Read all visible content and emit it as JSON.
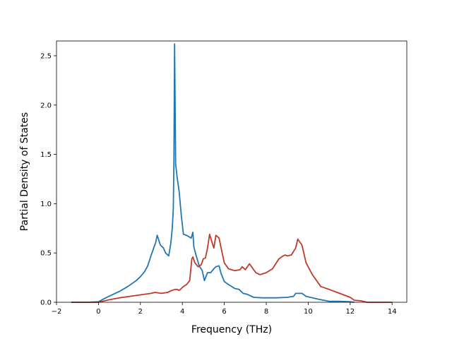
{
  "chart_data": {
    "type": "line",
    "title": "",
    "xlabel": "Frequency (THz)",
    "ylabel": "Partial Density of States",
    "xlim": [
      -2,
      14.7
    ],
    "ylim": [
      0,
      2.65
    ],
    "xticks": [
      -2,
      0,
      2,
      4,
      6,
      8,
      10,
      12,
      14
    ],
    "yticks": [
      0.0,
      0.5,
      1.0,
      1.5,
      2.0,
      2.5
    ],
    "xtick_labels": [
      "−2",
      "0",
      "2",
      "4",
      "6",
      "8",
      "10",
      "12",
      "14"
    ],
    "ytick_labels": [
      "0.0",
      "0.5",
      "1.0",
      "1.5",
      "2.0",
      "2.5"
    ],
    "grid": false,
    "legend": "none",
    "series": [
      {
        "color": "#1f77b4",
        "x": [
          -1.3,
          -0.5,
          0.0,
          0.3,
          0.6,
          1.0,
          1.4,
          1.8,
          2.0,
          2.2,
          2.35,
          2.5,
          2.65,
          2.72,
          2.8,
          2.95,
          3.1,
          3.2,
          3.35,
          3.45,
          3.52,
          3.57,
          3.6,
          3.63,
          3.68,
          3.75,
          3.85,
          3.95,
          4.05,
          4.2,
          4.35,
          4.42,
          4.5,
          4.55,
          4.65,
          4.8,
          4.95,
          5.05,
          5.2,
          5.35,
          5.5,
          5.6,
          5.75,
          5.85,
          6.0,
          6.2,
          6.5,
          6.7,
          6.9,
          7.1,
          7.2,
          7.4,
          7.8,
          8.5,
          9.0,
          9.3,
          9.4,
          9.55,
          9.7,
          9.9,
          10.5,
          11.0,
          11.5,
          12.0,
          12.2
        ],
        "y": [
          0.0,
          0.0,
          0.005,
          0.04,
          0.07,
          0.11,
          0.16,
          0.22,
          0.26,
          0.31,
          0.37,
          0.47,
          0.56,
          0.6,
          0.68,
          0.58,
          0.55,
          0.5,
          0.47,
          0.6,
          0.75,
          0.95,
          1.45,
          2.62,
          1.4,
          1.27,
          1.12,
          0.88,
          0.69,
          0.68,
          0.66,
          0.65,
          0.71,
          0.56,
          0.48,
          0.37,
          0.32,
          0.22,
          0.3,
          0.3,
          0.34,
          0.36,
          0.37,
          0.29,
          0.21,
          0.18,
          0.14,
          0.13,
          0.09,
          0.08,
          0.07,
          0.05,
          0.045,
          0.045,
          0.05,
          0.06,
          0.09,
          0.09,
          0.09,
          0.06,
          0.03,
          0.01,
          0.01,
          0.005,
          0.0
        ]
      },
      {
        "color": "#c0392b",
        "x": [
          -1.3,
          0.0,
          0.5,
          1.0,
          1.5,
          2.0,
          2.5,
          2.7,
          3.0,
          3.3,
          3.5,
          3.65,
          3.75,
          3.85,
          3.95,
          4.05,
          4.2,
          4.35,
          4.45,
          4.5,
          4.6,
          4.75,
          4.9,
          5.0,
          5.1,
          5.2,
          5.3,
          5.38,
          5.5,
          5.6,
          5.75,
          5.85,
          6.0,
          6.2,
          6.5,
          6.75,
          6.85,
          7.0,
          7.2,
          7.3,
          7.5,
          7.7,
          8.0,
          8.3,
          8.6,
          8.8,
          8.9,
          9.0,
          9.2,
          9.4,
          9.5,
          9.7,
          9.9,
          10.2,
          10.6,
          11.0,
          11.5,
          12.0,
          12.2,
          12.5,
          12.8,
          13.5,
          14.0
        ],
        "y": [
          0.0,
          0.0,
          0.025,
          0.045,
          0.06,
          0.075,
          0.09,
          0.1,
          0.09,
          0.1,
          0.12,
          0.13,
          0.13,
          0.12,
          0.14,
          0.16,
          0.18,
          0.22,
          0.44,
          0.46,
          0.4,
          0.36,
          0.38,
          0.44,
          0.45,
          0.55,
          0.69,
          0.63,
          0.55,
          0.68,
          0.65,
          0.55,
          0.4,
          0.34,
          0.32,
          0.33,
          0.36,
          0.33,
          0.39,
          0.36,
          0.3,
          0.28,
          0.3,
          0.34,
          0.44,
          0.47,
          0.48,
          0.47,
          0.48,
          0.55,
          0.64,
          0.58,
          0.4,
          0.28,
          0.16,
          0.13,
          0.09,
          0.05,
          0.02,
          0.015,
          0.0,
          0.0,
          0.0
        ]
      }
    ]
  }
}
